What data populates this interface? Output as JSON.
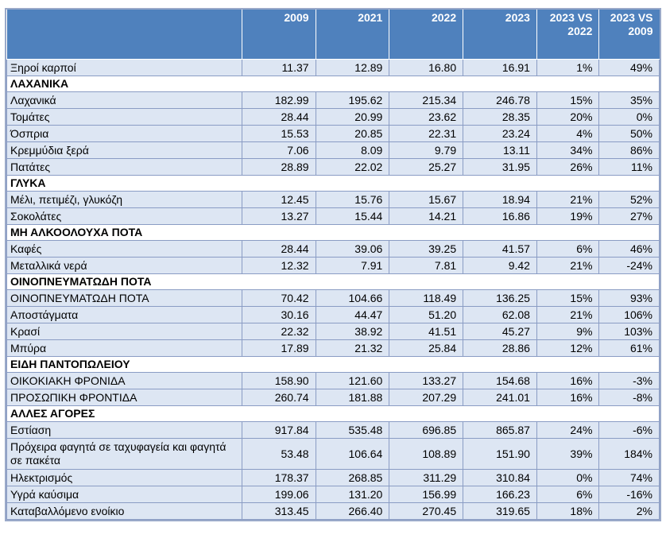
{
  "columns": [
    "",
    "2009",
    "2021",
    "2022",
    "2023",
    "2023 VS 2022",
    "2023 VS 2009"
  ],
  "rows": [
    {
      "type": "row",
      "label": "Ξηροί καρποί",
      "values": [
        "11.37",
        "12.89",
        "16.80",
        "16.91",
        "1%",
        "49%"
      ]
    },
    {
      "type": "section",
      "label": "ΛΑΧΑΝΙΚΑ"
    },
    {
      "type": "row",
      "label": "Λαχανικά",
      "values": [
        "182.99",
        "195.62",
        "215.34",
        "246.78",
        "15%",
        "35%"
      ]
    },
    {
      "type": "row",
      "label": "Τομάτες",
      "values": [
        "28.44",
        "20.99",
        "23.62",
        "28.35",
        "20%",
        "0%"
      ]
    },
    {
      "type": "row",
      "label": "Όσπρια",
      "values": [
        "15.53",
        "20.85",
        "22.31",
        "23.24",
        "4%",
        "50%"
      ]
    },
    {
      "type": "row",
      "label": "Κρεμμύδια ξερά",
      "values": [
        "7.06",
        "8.09",
        "9.79",
        "13.11",
        "34%",
        "86%"
      ]
    },
    {
      "type": "row",
      "label": "Πατάτες",
      "values": [
        "28.89",
        "22.02",
        "25.27",
        "31.95",
        "26%",
        "11%"
      ]
    },
    {
      "type": "section",
      "label": "ΓΛΥΚΑ"
    },
    {
      "type": "row",
      "label": "Μέλι, πετιμέζι, γλυκόζη",
      "values": [
        "12.45",
        "15.76",
        "15.67",
        "18.94",
        "21%",
        "52%"
      ]
    },
    {
      "type": "row",
      "label": "Σοκολάτες",
      "values": [
        "13.27",
        "15.44",
        "14.21",
        "16.86",
        "19%",
        "27%"
      ]
    },
    {
      "type": "section",
      "label": "ΜΗ ΑΛΚΟΟΛΟΥΧΑ ΠΟΤΑ"
    },
    {
      "type": "row",
      "label": "Καφές",
      "values": [
        "28.44",
        "39.06",
        "39.25",
        "41.57",
        "6%",
        "46%"
      ]
    },
    {
      "type": "row",
      "label": "Μεταλλικά νερά",
      "values": [
        "12.32",
        "7.91",
        "7.81",
        "9.42",
        "21%",
        "-24%"
      ]
    },
    {
      "type": "section",
      "label": "ΟΙΝΟΠΝΕΥΜΑΤΩΔΗ ΠΟΤΑ"
    },
    {
      "type": "row",
      "label": "ΟΙΝΟΠΝΕΥΜΑΤΩΔΗ ΠΟΤΑ",
      "values": [
        "70.42",
        "104.66",
        "118.49",
        "136.25",
        "15%",
        "93%"
      ]
    },
    {
      "type": "row",
      "label": "Αποστάγματα",
      "values": [
        "30.16",
        "44.47",
        "51.20",
        "62.08",
        "21%",
        "106%"
      ]
    },
    {
      "type": "row",
      "label": "Κρασί",
      "values": [
        "22.32",
        "38.92",
        "41.51",
        "45.27",
        "9%",
        "103%"
      ]
    },
    {
      "type": "row",
      "label": "Μπύρα",
      "values": [
        "17.89",
        "21.32",
        "25.84",
        "28.86",
        "12%",
        "61%"
      ]
    },
    {
      "type": "section",
      "label": "ΕΙΔΗ ΠΑΝΤΟΠΩΛΕΙΟΥ"
    },
    {
      "type": "row",
      "label": "ΟΙΚΟΚΙΑΚΗ ΦΡΟΝΙΔΑ",
      "values": [
        "158.90",
        "121.60",
        "133.27",
        "154.68",
        "16%",
        "-3%"
      ]
    },
    {
      "type": "row",
      "label": "ΠΡΟΣΩΠΙΚΗ ΦΡΟΝΤΙΔΑ",
      "values": [
        "260.74",
        "181.88",
        "207.29",
        "241.01",
        "16%",
        "-8%"
      ]
    },
    {
      "type": "section",
      "label": "ΑΛΛΕΣ ΑΓΟΡΕΣ"
    },
    {
      "type": "row",
      "label": "Εστίαση",
      "values": [
        "917.84",
        "535.48",
        "696.85",
        "865.87",
        "24%",
        "-6%"
      ]
    },
    {
      "type": "row",
      "label": "Πρόχειρα φαγητά σε ταχυφαγεία και φαγητά σε πακέτα",
      "tall": true,
      "values": [
        "53.48",
        "106.64",
        "108.89",
        "151.90",
        "39%",
        "184%"
      ]
    },
    {
      "type": "row",
      "label": "Ηλεκτρισμός",
      "values": [
        "178.37",
        "268.85",
        "311.29",
        "310.84",
        "0%",
        "74%"
      ]
    },
    {
      "type": "row",
      "label": "Υγρά καύσιμα",
      "values": [
        "199.06",
        "131.20",
        "156.99",
        "166.23",
        "6%",
        "-16%"
      ]
    },
    {
      "type": "row",
      "label": "Καταβαλλόμενο ενοίκιο",
      "values": [
        "313.45",
        "266.40",
        "270.45",
        "319.65",
        "18%",
        "2%"
      ]
    }
  ],
  "colors": {
    "header_bg": "#4f81bd",
    "header_text": "#ffffff",
    "row_bg": "#dde6f3",
    "border": "#8a9cc4"
  }
}
